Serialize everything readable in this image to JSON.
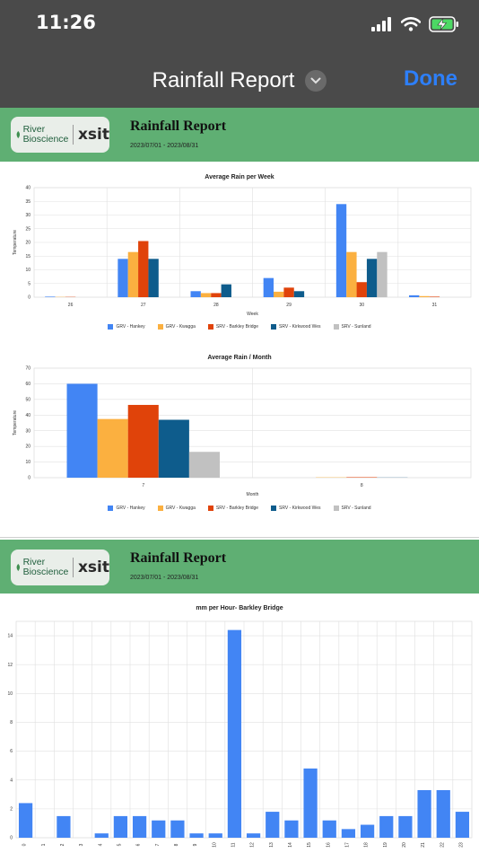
{
  "status": {
    "time": "11:26"
  },
  "nav": {
    "title": "Rainfall Report",
    "done_label": "Done"
  },
  "report": {
    "title": "Rainfall Report",
    "dates": "2023/07/01 - 2023/08/31",
    "logo_line1": "River",
    "logo_line2": "Bioscience",
    "logo_brand": "xsit"
  },
  "colors": {
    "topbar": "#4a4a4a",
    "done": "#2d7ff9",
    "banner": "#5faf73",
    "series": [
      "#4285f4",
      "#fbb040",
      "#e0430a",
      "#0e5c8c",
      "#c1c1c1"
    ]
  },
  "legend": [
    "GRV - Hankey",
    "GRV - Kwagga",
    "SRV - Barkley Bridge",
    "SRV - Kirkwood Wes",
    "SRV - Sunland"
  ],
  "chart_data": [
    {
      "type": "bar",
      "title": "Average Rain per Week",
      "xlabel": "Week",
      "ylabel": "Temperature",
      "categories": [
        "26",
        "27",
        "28",
        "29",
        "30",
        "31"
      ],
      "ylim": [
        0,
        40
      ],
      "yticks": [
        "0",
        "5",
        "10",
        "15",
        "20",
        "25",
        "30",
        "35",
        "40"
      ],
      "series": [
        {
          "name": "GRV - Hankey",
          "values": [
            0.2,
            14,
            2.2,
            7,
            34,
            0.7
          ]
        },
        {
          "name": "GRV - Kwagga",
          "values": [
            0.1,
            16.5,
            1.5,
            2,
            16.5,
            0.4
          ]
        },
        {
          "name": "SRV - Barkley Bridge",
          "values": [
            0.1,
            20.5,
            1.5,
            3.5,
            5.5,
            0.2
          ]
        },
        {
          "name": "SRV - Kirkwood Wes",
          "values": [
            0,
            14,
            4.7,
            2.2,
            14,
            0
          ]
        },
        {
          "name": "SRV - Sunland",
          "values": [
            0,
            0,
            0,
            0,
            16.5,
            0
          ]
        }
      ],
      "legend_position": "bottom",
      "grid": true
    },
    {
      "type": "bar",
      "title": "Average Rain / Month",
      "xlabel": "Month",
      "ylabel": "Temperature",
      "categories": [
        "7",
        "8"
      ],
      "ylim": [
        0,
        70
      ],
      "yticks": [
        "0",
        "10",
        "20",
        "30",
        "40",
        "50",
        "60",
        "70"
      ],
      "series": [
        {
          "name": "GRV - Hankey",
          "values": [
            60,
            0
          ]
        },
        {
          "name": "GRV - Kwagga",
          "values": [
            37.5,
            0.2
          ]
        },
        {
          "name": "SRV - Barkley Bridge",
          "values": [
            46.5,
            0.3
          ]
        },
        {
          "name": "SRV - Kirkwood Wes",
          "values": [
            37,
            0.1
          ]
        },
        {
          "name": "SRV - Sunland",
          "values": [
            16.5,
            0
          ]
        }
      ],
      "legend_position": "bottom",
      "grid": true
    },
    {
      "type": "bar",
      "title": "mm per Hour- Barkley Bridge",
      "categories": [
        "0",
        "1",
        "2",
        "3",
        "4",
        "5",
        "6",
        "7",
        "8",
        "9",
        "10",
        "11",
        "12",
        "13",
        "14",
        "15",
        "16",
        "17",
        "18",
        "19",
        "20",
        "21",
        "22",
        "23"
      ],
      "ylim": [
        0,
        15
      ],
      "yticks": [
        "0",
        "2",
        "4",
        "6",
        "8",
        "10",
        "12",
        "14"
      ],
      "values": [
        2.4,
        0,
        1.5,
        0,
        0.3,
        1.5,
        1.5,
        1.2,
        1.2,
        0.3,
        0.3,
        14.4,
        0.3,
        1.8,
        1.2,
        4.8,
        1.2,
        0.6,
        0.9,
        1.5,
        1.5,
        3.3,
        3.3,
        1.8
      ],
      "grid": true
    }
  ]
}
